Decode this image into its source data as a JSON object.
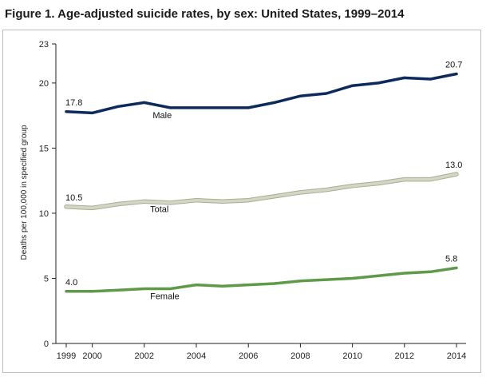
{
  "page": {
    "title": "Figure 1. Age-adjusted suicide rates, by sex: United States, 1999–2014"
  },
  "chart_data": {
    "type": "line",
    "title": "Figure 1. Age-adjusted suicide rates, by sex: United States, 1999–2014",
    "xlabel": "",
    "ylabel": "Deaths per 100,000 in specified group",
    "x": [
      1999,
      2000,
      2001,
      2002,
      2003,
      2004,
      2005,
      2006,
      2007,
      2008,
      2009,
      2010,
      2011,
      2012,
      2013,
      2014
    ],
    "xlim": [
      1999,
      2014
    ],
    "xticks": [
      1999,
      2000,
      2002,
      2004,
      2006,
      2008,
      2010,
      2012,
      2014
    ],
    "ylim": [
      0,
      23
    ],
    "yticks": [
      0,
      5,
      10,
      15,
      20,
      23
    ],
    "grid": false,
    "series": [
      {
        "name": "Male",
        "color": "#0c2a5c",
        "values": [
          17.8,
          17.7,
          18.2,
          18.5,
          18.1,
          18.1,
          18.1,
          18.1,
          18.5,
          19.0,
          19.2,
          19.8,
          20.0,
          20.4,
          20.3,
          20.7
        ],
        "start_label": "17.8",
        "end_label": "20.7"
      },
      {
        "name": "Total",
        "color": "#d3d6c2",
        "values": [
          10.5,
          10.4,
          10.7,
          10.9,
          10.8,
          11.0,
          10.9,
          11.0,
          11.3,
          11.6,
          11.8,
          12.1,
          12.3,
          12.6,
          12.6,
          13.0
        ],
        "start_label": "10.5",
        "end_label": "13.0"
      },
      {
        "name": "Female",
        "color": "#5e9a47",
        "values": [
          4.0,
          4.0,
          4.1,
          4.2,
          4.2,
          4.5,
          4.4,
          4.5,
          4.6,
          4.8,
          4.9,
          5.0,
          5.2,
          5.4,
          5.5,
          5.8
        ],
        "start_label": "4.0",
        "end_label": "5.8"
      }
    ]
  }
}
